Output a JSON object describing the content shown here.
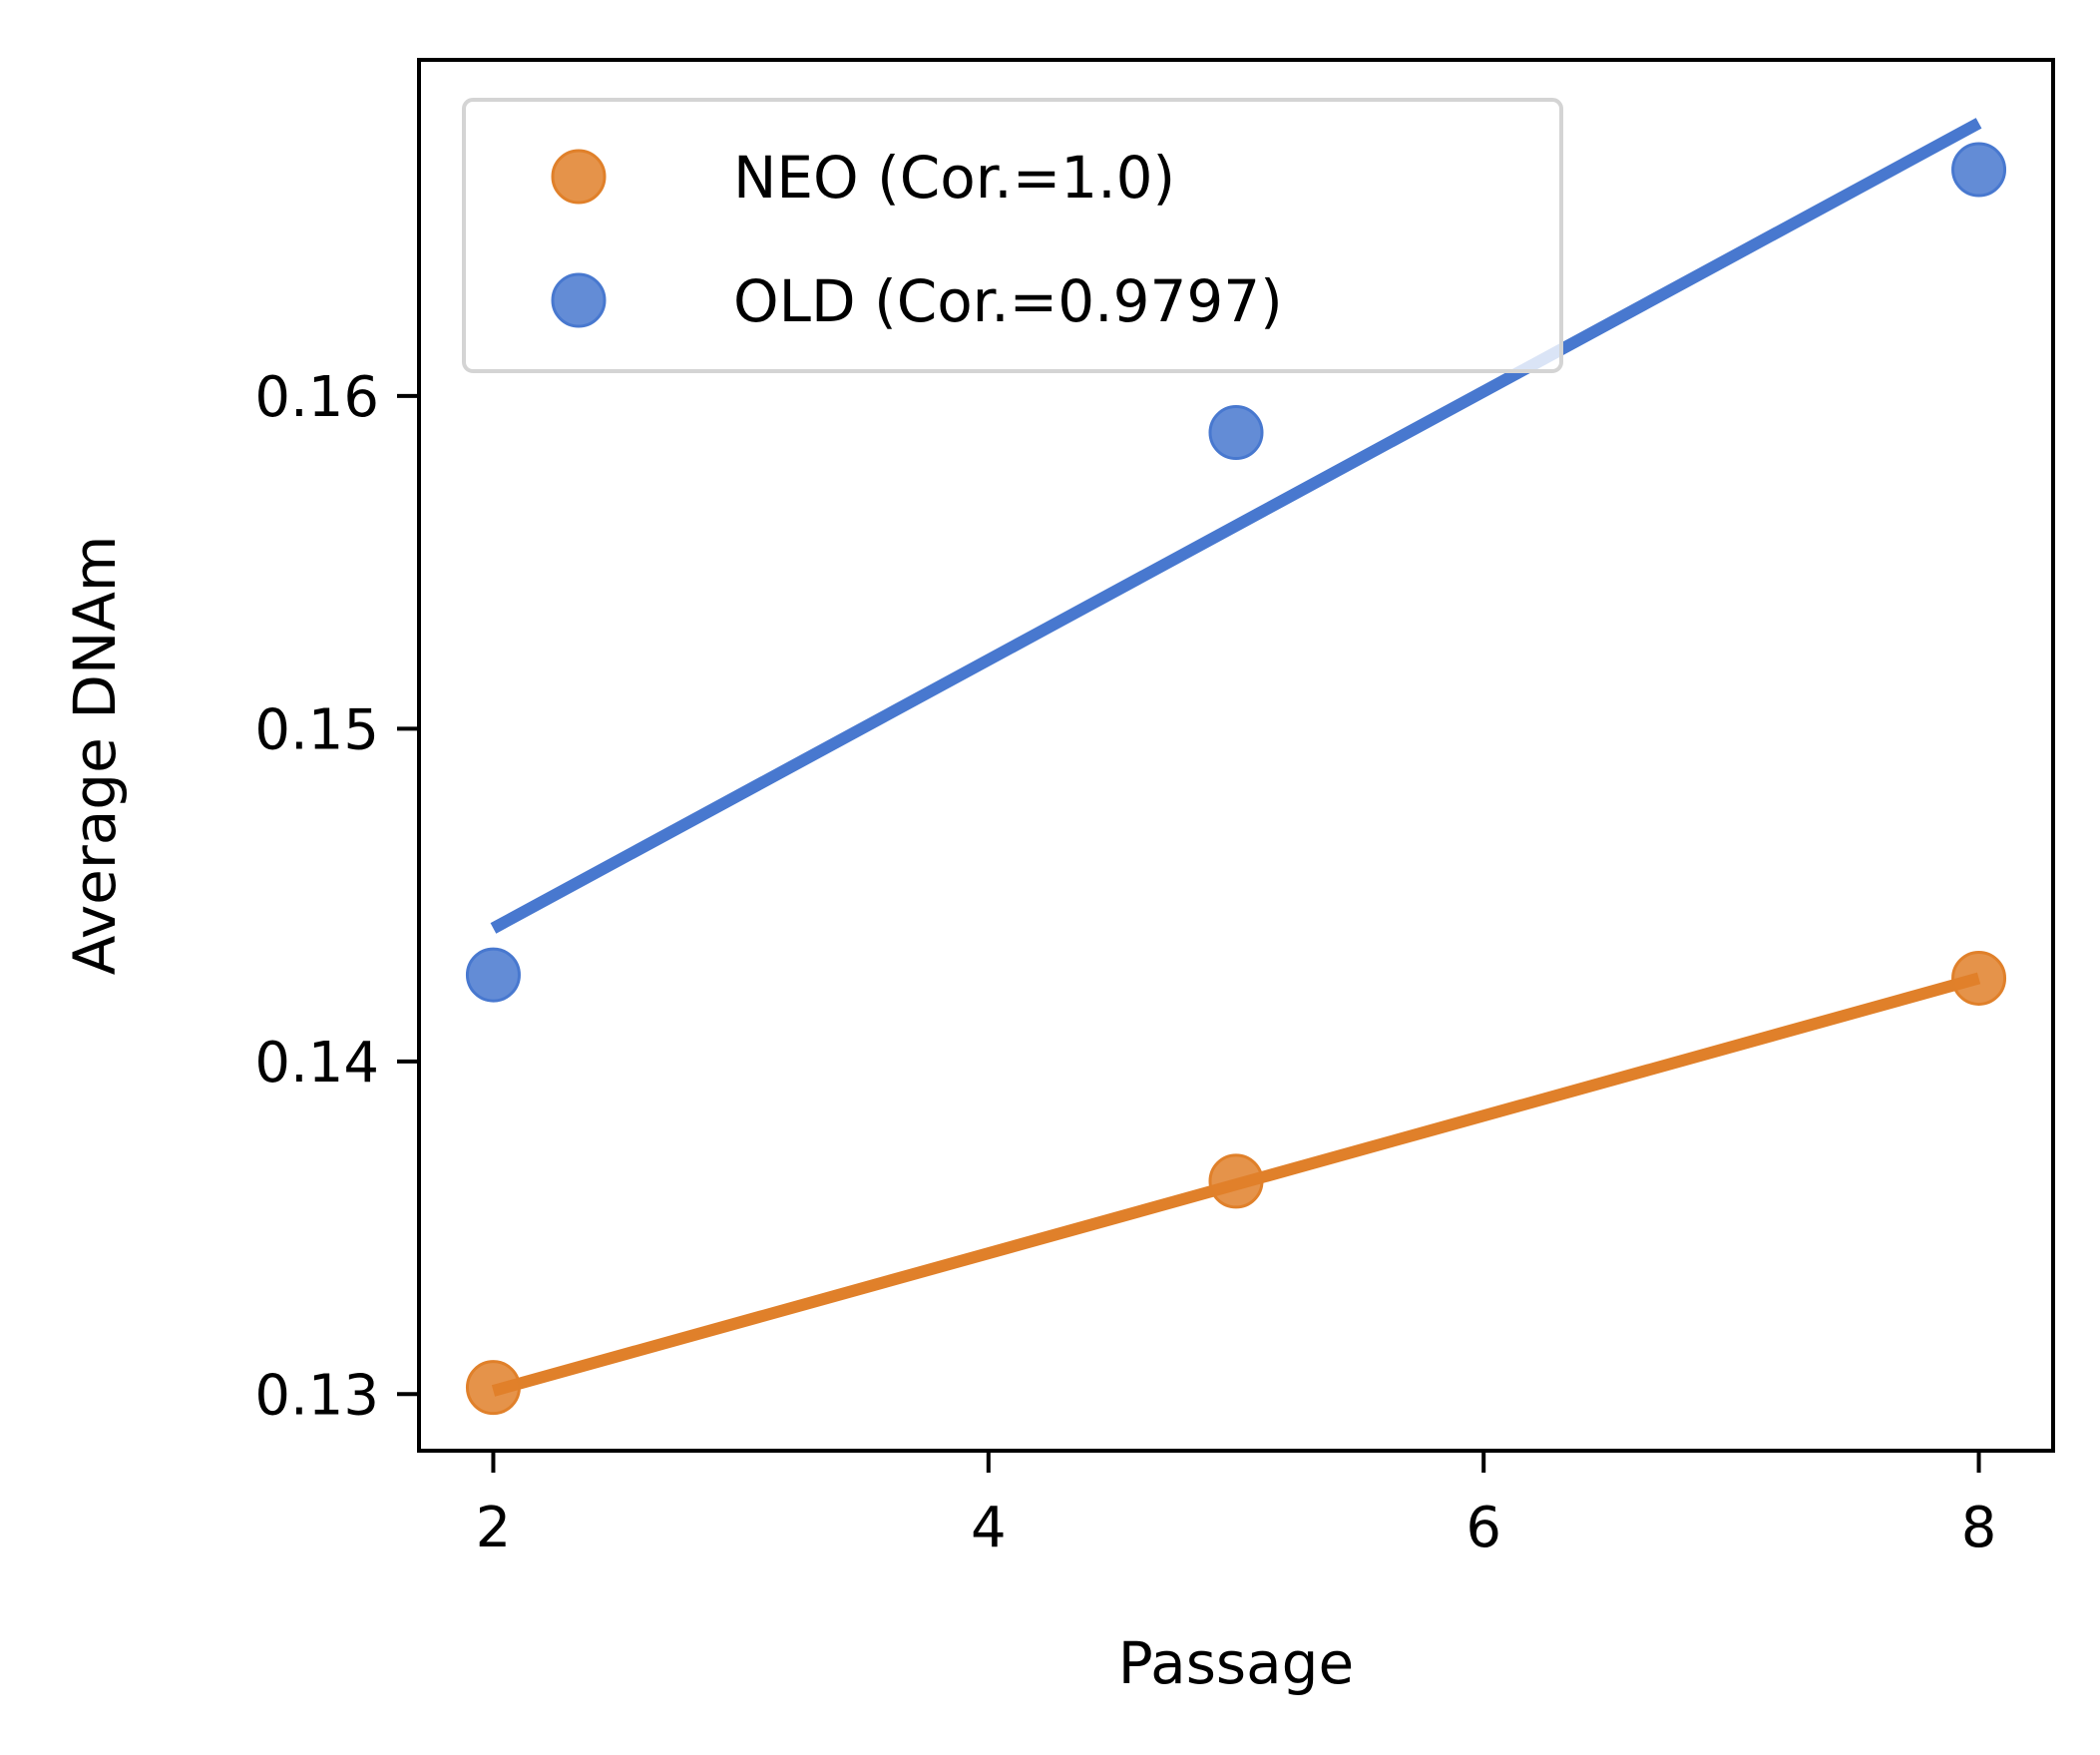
{
  "chart_data": {
    "type": "scatter",
    "xlabel": "Passage",
    "ylabel": "Average DNAm",
    "xlim": [
      1.7,
      8.3
    ],
    "ylim": [
      0.1283,
      0.1701
    ],
    "xticks": [
      2,
      4,
      6,
      8
    ],
    "yticks": [
      0.13,
      0.14,
      0.15,
      0.16
    ],
    "xtick_labels": [
      "2",
      "4",
      "6",
      "8"
    ],
    "ytick_labels": [
      "0.13",
      "0.14",
      "0.15",
      "0.16"
    ],
    "grid": false,
    "legend_position": "top-left",
    "series": [
      {
        "name": "NEO (Cor.=1.0)",
        "color": "#e0802a",
        "points": [
          {
            "x": 2,
            "y": 0.1302
          },
          {
            "x": 5,
            "y": 0.1364
          },
          {
            "x": 8,
            "y": 0.1425
          }
        ],
        "fit_line": {
          "x": [
            2,
            8
          ],
          "y": [
            0.1301,
            0.1425
          ]
        }
      },
      {
        "name": "OLD (Cor.=0.9797)",
        "color": "#4878cf",
        "points": [
          {
            "x": 2,
            "y": 0.1426
          },
          {
            "x": 5,
            "y": 0.1589
          },
          {
            "x": 8,
            "y": 0.1668
          }
        ],
        "fit_line": {
          "x": [
            2,
            8
          ],
          "y": [
            0.144,
            0.1682
          ]
        }
      }
    ]
  }
}
